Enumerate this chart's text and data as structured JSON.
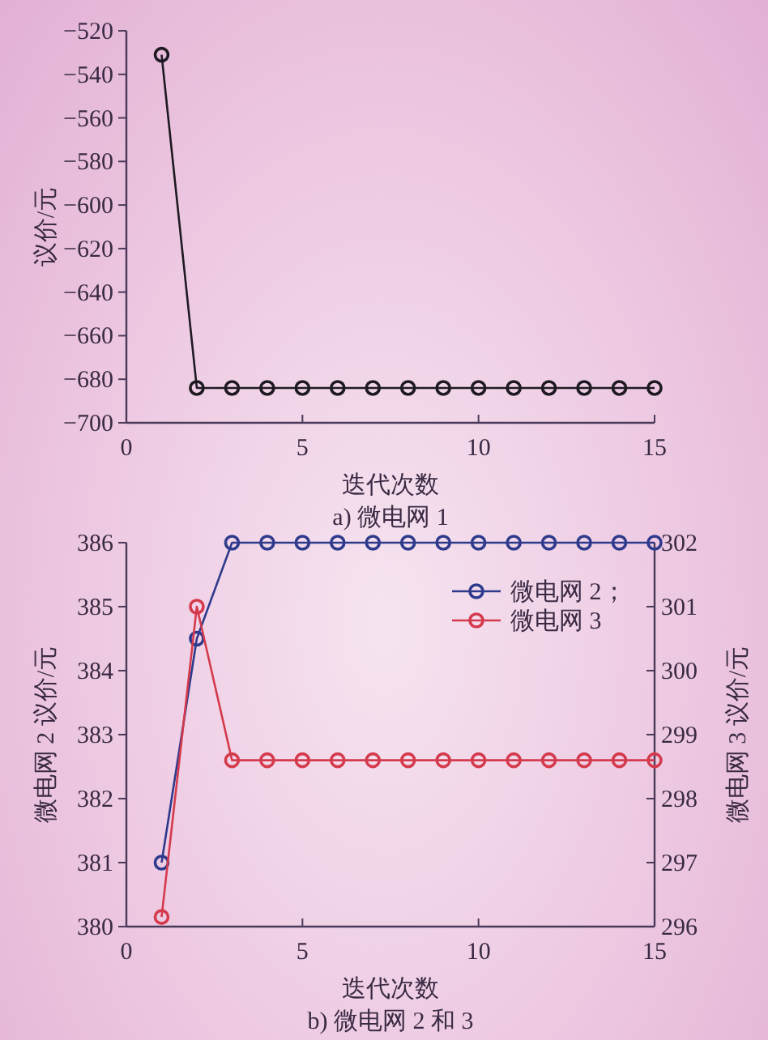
{
  "chart_data": [
    {
      "type": "line",
      "xlabel": "迭代次数",
      "ylabel": "议价/元",
      "annotations": [
        "a) 微电网 1"
      ],
      "x": [
        1,
        2,
        3,
        4,
        5,
        6,
        7,
        8,
        9,
        10,
        11,
        12,
        13,
        14,
        15
      ],
      "xlim": [
        0,
        15
      ],
      "xticks": [
        0,
        5,
        10,
        15
      ],
      "ylim": [
        -700,
        -520
      ],
      "yticks": [
        -700,
        -680,
        -660,
        -640,
        -620,
        -600,
        -580,
        -560,
        -540,
        -520
      ],
      "marker": "circle",
      "line_style": "solid",
      "grid": false,
      "legend": false,
      "series": [
        {
          "color": "#1e1a22",
          "values": [
            -531,
            -684,
            -684,
            -684,
            -684,
            -684,
            -684,
            -684,
            -684,
            -684,
            -684,
            -684,
            -684,
            -684,
            -684
          ]
        }
      ]
    },
    {
      "type": "line",
      "xlabel": "迭代次数",
      "ylabel": "微电网 2 议价/元",
      "y2label": "微电网 3 议价/元",
      "annotations": [
        "b) 微电网 2 和 3"
      ],
      "x": [
        1,
        2,
        3,
        4,
        5,
        6,
        7,
        8,
        9,
        10,
        11,
        12,
        13,
        14,
        15
      ],
      "xlim": [
        0,
        15
      ],
      "xticks": [
        0,
        5,
        10,
        15
      ],
      "ylim": [
        380,
        386
      ],
      "yticks": [
        380,
        381,
        382,
        383,
        384,
        385,
        386
      ],
      "y2lim": [
        296,
        302
      ],
      "y2ticks": [
        296,
        297,
        298,
        299,
        300,
        301,
        302
      ],
      "marker": "circle",
      "line_style": "solid",
      "grid": false,
      "legend": "top right",
      "series": [
        {
          "name": "微电网 2；",
          "color": "#2e3a8c",
          "values": [
            381,
            384.5,
            386,
            386,
            386,
            386,
            386,
            386,
            386,
            386,
            386,
            386,
            386,
            386,
            386
          ]
        },
        {
          "name": "微电网 3",
          "color": "#d43a4c",
          "axis": "y2",
          "values": [
            296.15,
            301,
            298.6,
            298.6,
            298.6,
            298.6,
            298.6,
            298.6,
            298.6,
            298.6,
            298.6,
            298.6,
            298.6,
            298.6,
            298.6
          ]
        }
      ]
    }
  ]
}
